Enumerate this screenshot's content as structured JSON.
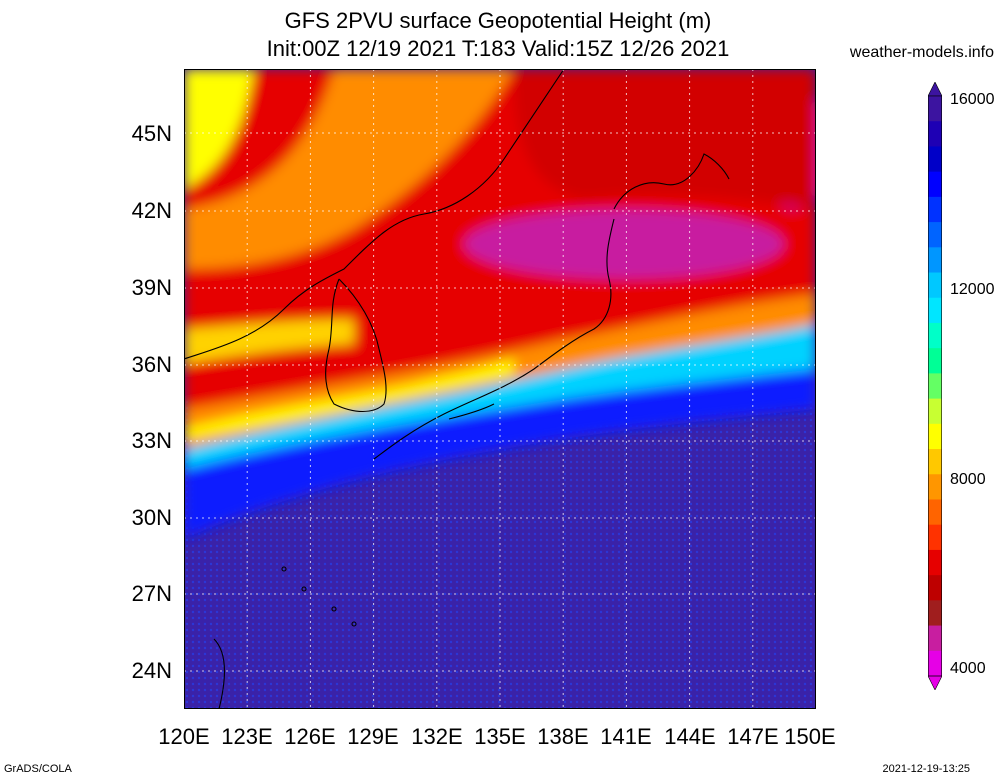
{
  "title_line1": "GFS 2PVU surface Geopotential Height (m)",
  "title_line2": "Init:00Z 12/19 2021 T:183 Valid:15Z 12/26 2021",
  "credit": "weather-models.info",
  "footer_left": "GrADS/COLA",
  "footer_right": "2021-12-19-13:25",
  "lat_labels": [
    "45N",
    "42N",
    "39N",
    "36N",
    "33N",
    "30N",
    "27N",
    "24N"
  ],
  "lon_labels": [
    "120E",
    "123E",
    "126E",
    "129E",
    "132E",
    "135E",
    "138E",
    "141E",
    "144E",
    "147E",
    "150E"
  ],
  "colorbar": {
    "labels": [
      "16000",
      "12000",
      "8000",
      "4000"
    ],
    "colors": [
      "#e600e6",
      "#c81ea0",
      "#a01e1e",
      "#be0000",
      "#e60000",
      "#ff3200",
      "#ff6400",
      "#ff9600",
      "#ffc800",
      "#ffff00",
      "#c8ff32",
      "#64ff64",
      "#00ff96",
      "#00ffc8",
      "#00e6ff",
      "#00c8ff",
      "#0096ff",
      "#0064ff",
      "#0032ff",
      "#0000ff",
      "#0000c8",
      "#1e00b4",
      "#3c14a0"
    ]
  },
  "map": {
    "lon_range": [
      120,
      150
    ],
    "lat_range": [
      22.5,
      47.5
    ],
    "field_colors": {
      "low": "#d81ea0",
      "mid_red": "#e60000",
      "orange": "#ff8c00",
      "yellow": "#ffff00",
      "cyan": "#00d2ff",
      "blue": "#0028ff",
      "deep": "#3a22a8"
    }
  }
}
